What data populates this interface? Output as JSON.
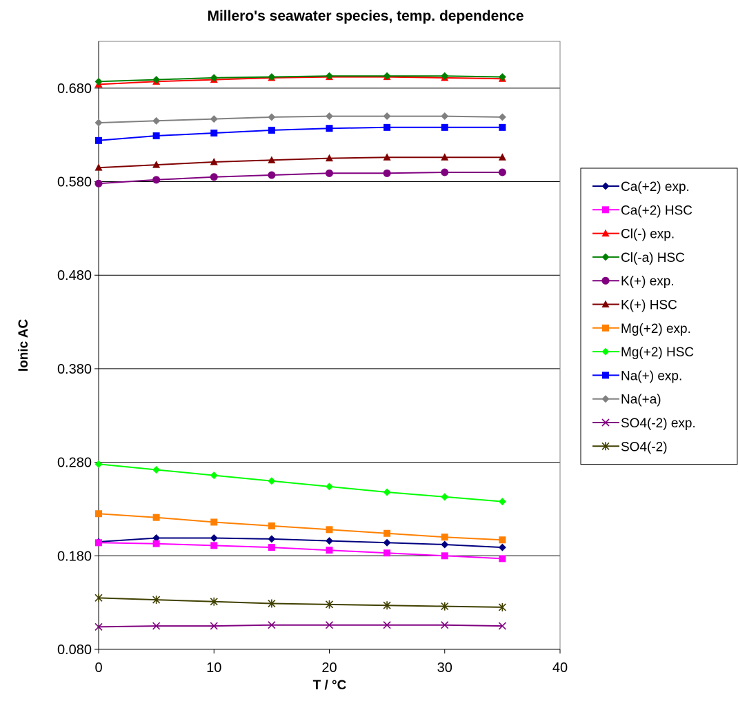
{
  "chart_data": {
    "type": "line",
    "title": "Millero's seawater species, temp. dependence",
    "xlabel": "T / °C",
    "ylabel": "Ionic AC",
    "xlim": [
      0,
      40
    ],
    "ylim": [
      0.08,
      0.73
    ],
    "x_ticks": [
      0,
      10,
      20,
      30,
      40
    ],
    "x_tick_labels": [
      "0",
      "10",
      "20",
      "30",
      "40"
    ],
    "y_ticks": [
      0.08,
      0.18,
      0.28,
      0.38,
      0.48,
      0.58,
      0.68
    ],
    "y_tick_labels": [
      "0.080",
      "0.180",
      "0.280",
      "0.380",
      "0.480",
      "0.580",
      "0.680"
    ],
    "grid": "horizontal major gridlines",
    "legend_position": "right",
    "x": [
      0,
      5,
      10,
      15,
      20,
      25,
      30,
      35
    ],
    "series": [
      {
        "name": "Ca(+2) exp.",
        "color": "#000080",
        "marker": "diamond",
        "values": [
          0.195,
          0.199,
          0.199,
          0.198,
          0.196,
          0.194,
          0.192,
          0.189
        ]
      },
      {
        "name": "Ca(+2) HSC",
        "color": "#FF00FF",
        "marker": "square",
        "values": [
          0.194,
          0.193,
          0.191,
          0.189,
          0.186,
          0.183,
          0.18,
          0.177
        ]
      },
      {
        "name": "Cl(-) exp.",
        "color": "#FF0000",
        "marker": "triangle",
        "values": [
          0.684,
          0.687,
          0.689,
          0.691,
          0.692,
          0.692,
          0.691,
          0.69
        ]
      },
      {
        "name": "Cl(-a) HSC",
        "color": "#008000",
        "marker": "diamond",
        "values": [
          0.687,
          0.689,
          0.691,
          0.692,
          0.693,
          0.693,
          0.693,
          0.692
        ]
      },
      {
        "name": "K(+) exp.",
        "color": "#800080",
        "marker": "circle",
        "values": [
          0.578,
          0.582,
          0.585,
          0.587,
          0.589,
          0.589,
          0.59,
          0.59
        ]
      },
      {
        "name": "K(+) HSC",
        "color": "#800000",
        "marker": "triangle",
        "values": [
          0.595,
          0.598,
          0.601,
          0.603,
          0.605,
          0.606,
          0.606,
          0.606
        ]
      },
      {
        "name": "Mg(+2) exp.",
        "color": "#FF8000",
        "marker": "square",
        "values": [
          0.225,
          0.221,
          0.216,
          0.212,
          0.208,
          0.204,
          0.2,
          0.197
        ]
      },
      {
        "name": "Mg(+2) HSC",
        "color": "#00FF00",
        "marker": "diamond",
        "values": [
          0.278,
          0.272,
          0.266,
          0.26,
          0.254,
          0.248,
          0.243,
          0.238
        ]
      },
      {
        "name": "Na(+) exp.",
        "color": "#0000FF",
        "marker": "square",
        "values": [
          0.624,
          0.629,
          0.632,
          0.635,
          0.637,
          0.638,
          0.638,
          0.638
        ]
      },
      {
        "name": "Na(+a)",
        "color": "#808080",
        "marker": "diamond",
        "values": [
          0.643,
          0.645,
          0.647,
          0.649,
          0.65,
          0.65,
          0.65,
          0.649
        ]
      },
      {
        "name": "SO4(-2) exp.",
        "color": "#800080",
        "marker": "x",
        "values": [
          0.104,
          0.105,
          0.105,
          0.106,
          0.106,
          0.106,
          0.106,
          0.105
        ]
      },
      {
        "name": "SO4(-2)",
        "color": "#404000",
        "marker": "star",
        "values": [
          0.135,
          0.133,
          0.131,
          0.129,
          0.128,
          0.127,
          0.126,
          0.125
        ]
      }
    ]
  }
}
